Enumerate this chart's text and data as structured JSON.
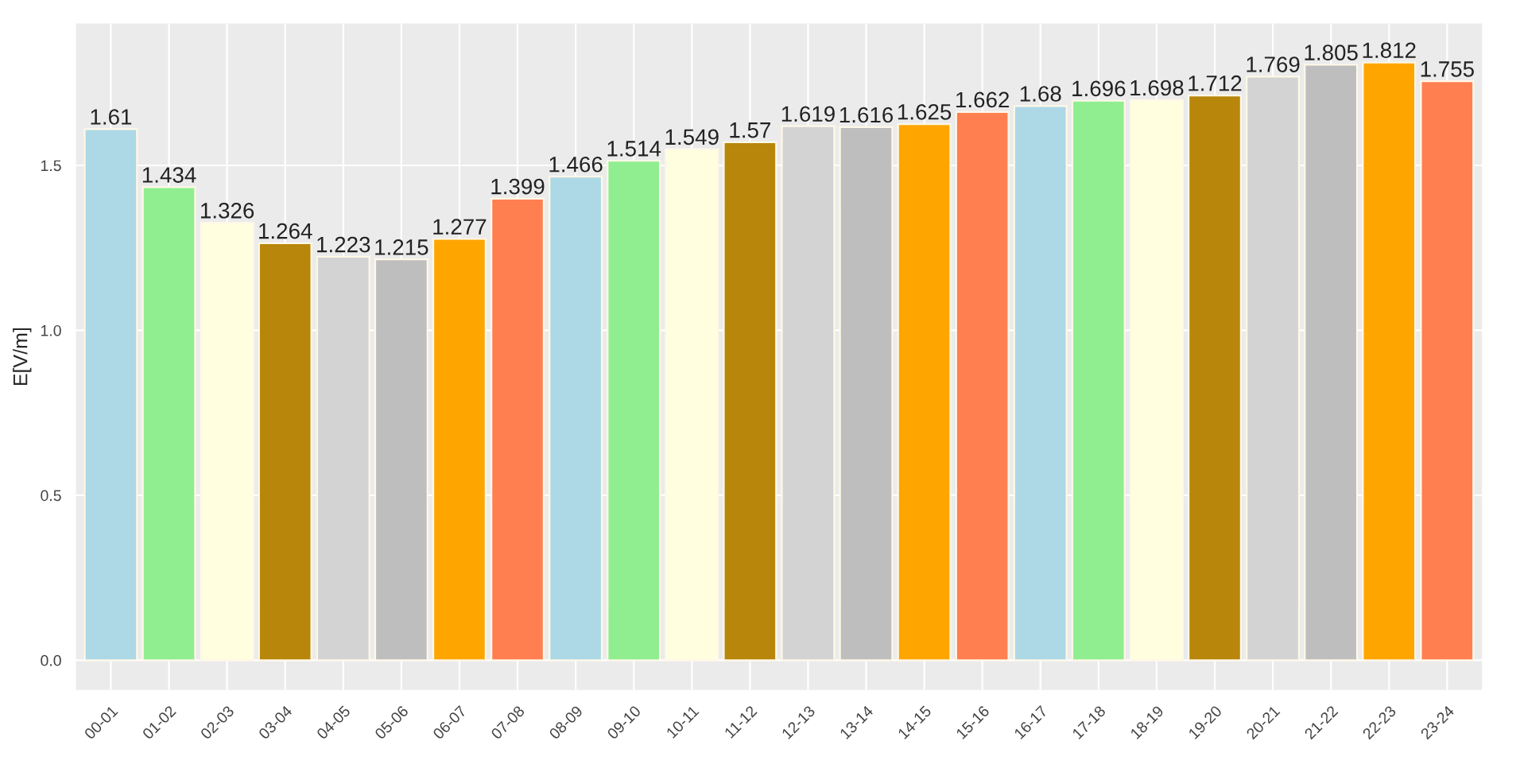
{
  "chart_data": {
    "type": "bar",
    "ylabel": "E[V/m]",
    "categories": [
      "00-01",
      "01-02",
      "02-03",
      "03-04",
      "04-05",
      "05-06",
      "06-07",
      "07-08",
      "08-09",
      "09-10",
      "10-11",
      "11-12",
      "12-13",
      "13-14",
      "14-15",
      "15-16",
      "16-17",
      "17-18",
      "18-19",
      "19-20",
      "20-21",
      "21-22",
      "22-23",
      "23-24"
    ],
    "values": [
      1.61,
      1.434,
      1.326,
      1.264,
      1.223,
      1.215,
      1.277,
      1.399,
      1.466,
      1.514,
      1.549,
      1.57,
      1.619,
      1.616,
      1.625,
      1.662,
      1.68,
      1.696,
      1.698,
      1.712,
      1.769,
      1.805,
      1.812,
      1.755
    ],
    "colors": [
      "#add8e6",
      "#90ee90",
      "#ffffe0",
      "#b8860b",
      "#d3d3d3",
      "#bebebe",
      "#ffa500",
      "#ff7f50",
      "#add8e6",
      "#90ee90",
      "#ffffe0",
      "#b8860b",
      "#d3d3d3",
      "#bebebe",
      "#ffa500",
      "#ff7f50",
      "#add8e6",
      "#90ee90",
      "#ffffe0",
      "#b8860b",
      "#d3d3d3",
      "#bebebe",
      "#ffa500",
      "#ff7f50"
    ],
    "ylim": [
      -0.09,
      1.93
    ],
    "yticks": [
      {
        "value": 0,
        "label": "0.0"
      },
      {
        "value": 0.5,
        "label": "0.5"
      },
      {
        "value": 1.0,
        "label": "1.0"
      },
      {
        "value": 1.5,
        "label": "1.5"
      }
    ],
    "grid": true,
    "data_labels": true,
    "legend": false
  }
}
